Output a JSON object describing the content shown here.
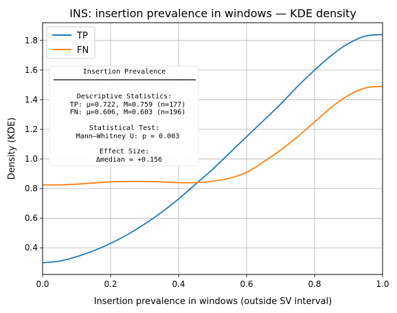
{
  "chart_data": {
    "type": "line",
    "title": "INS: insertion prevalence in windows — KDE density",
    "xlabel": "Insertion prevalence in windows (outside SV interval)",
    "ylabel": "Density (KDE)",
    "xlim": [
      0.0,
      1.0
    ],
    "ylim": [
      0.22,
      1.92
    ],
    "xticks": [
      "0.0",
      "0.2",
      "0.4",
      "0.6",
      "0.8",
      "1.0"
    ],
    "yticks": [
      "0.4",
      "0.6",
      "0.8",
      "1.0",
      "1.2",
      "1.4",
      "1.6",
      "1.8"
    ],
    "grid": true,
    "legend_position": "upper-left",
    "series": [
      {
        "name": "TP",
        "color": "#1f77b4",
        "x": [
          0.0,
          0.05,
          0.1,
          0.15,
          0.2,
          0.25,
          0.3,
          0.35,
          0.4,
          0.45,
          0.5,
          0.55,
          0.6,
          0.65,
          0.7,
          0.75,
          0.8,
          0.85,
          0.9,
          0.95,
          1.0
        ],
        "y": [
          0.3,
          0.31,
          0.34,
          0.38,
          0.43,
          0.49,
          0.56,
          0.64,
          0.73,
          0.83,
          0.93,
          1.04,
          1.15,
          1.26,
          1.37,
          1.49,
          1.6,
          1.7,
          1.78,
          1.83,
          1.84
        ]
      },
      {
        "name": "FN",
        "color": "#ff7f0e",
        "x": [
          0.0,
          0.05,
          0.1,
          0.15,
          0.2,
          0.25,
          0.3,
          0.35,
          0.4,
          0.45,
          0.5,
          0.55,
          0.6,
          0.65,
          0.7,
          0.75,
          0.8,
          0.85,
          0.9,
          0.95,
          1.0
        ],
        "y": [
          0.825,
          0.825,
          0.83,
          0.838,
          0.845,
          0.848,
          0.848,
          0.845,
          0.84,
          0.84,
          0.85,
          0.87,
          0.91,
          0.98,
          1.06,
          1.15,
          1.25,
          1.35,
          1.43,
          1.48,
          1.49
        ]
      }
    ],
    "stats_box": {
      "header": "Insertion Prevalence",
      "lines": [
        "Descriptive Statistics:",
        "TP: μ=0.722, M=0.759 (n=177)",
        "FN: μ=0.606, M=0.603 (n=196)",
        "",
        "Statistical Test:",
        "Mann–Whitney U: p = 0.003",
        "",
        "Effect Size:",
        "Δmedian = +0.156"
      ]
    }
  }
}
